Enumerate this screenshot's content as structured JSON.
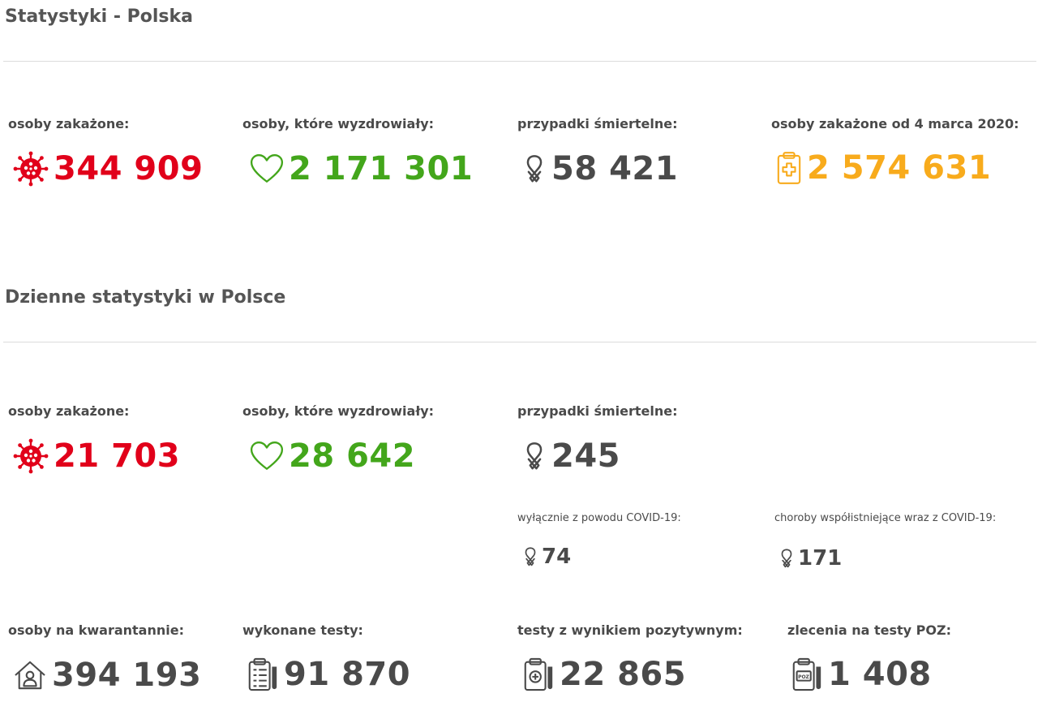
{
  "colors": {
    "infected": "#e1001a",
    "recovered": "#43a61b",
    "deaths": "#4a4a4a",
    "total": "#f8ab1c",
    "neutral": "#4a4a4a"
  },
  "sec1": {
    "title": "Statystyki - Polska",
    "infected": {
      "label": "osoby zakażone:",
      "value": "344 909",
      "icon": "virus-icon"
    },
    "recovered": {
      "label": "osoby, które wyzdrowiały:",
      "value": "2 171 301",
      "icon": "heart-icon"
    },
    "deaths": {
      "label": "przypadki śmiertelne:",
      "value": "58 421",
      "icon": "ribbon-icon"
    },
    "total": {
      "label": "osoby zakażone od 4 marca 2020:",
      "value": "2 574 631",
      "icon": "clipboard-medical-icon"
    }
  },
  "sec2": {
    "title": "Dzienne statystyki w Polsce",
    "infected": {
      "label": "osoby zakażone:",
      "value": "21 703",
      "icon": "virus-icon"
    },
    "recovered": {
      "label": "osoby, które wyzdrowiały:",
      "value": "28 642",
      "icon": "heart-icon"
    },
    "deaths": {
      "label": "przypadki śmiertelne:",
      "value": "245",
      "icon": "ribbon-icon"
    },
    "covid_only": {
      "label": "wyłącznie z powodu COVID-19:",
      "value": "74",
      "icon": "ribbon-icon"
    },
    "comorbid": {
      "label": "choroby współistniejące wraz z COVID-19:",
      "value": "171",
      "icon": "ribbon-icon"
    },
    "quarantine": {
      "label": "osoby na kwarantannie:",
      "value": "394 193",
      "icon": "house-person-icon"
    },
    "tests": {
      "label": "wykonane testy:",
      "value": "91 870",
      "icon": "clipboard-test-icon"
    },
    "positive": {
      "label": "testy z wynikiem pozytywnym:",
      "value": "22 865",
      "icon": "test-tube-icon"
    },
    "poz": {
      "label": "zlecenia na testy POZ:",
      "value": "1 408",
      "icon": "poz-order-icon",
      "icon_text": "POZ"
    }
  }
}
